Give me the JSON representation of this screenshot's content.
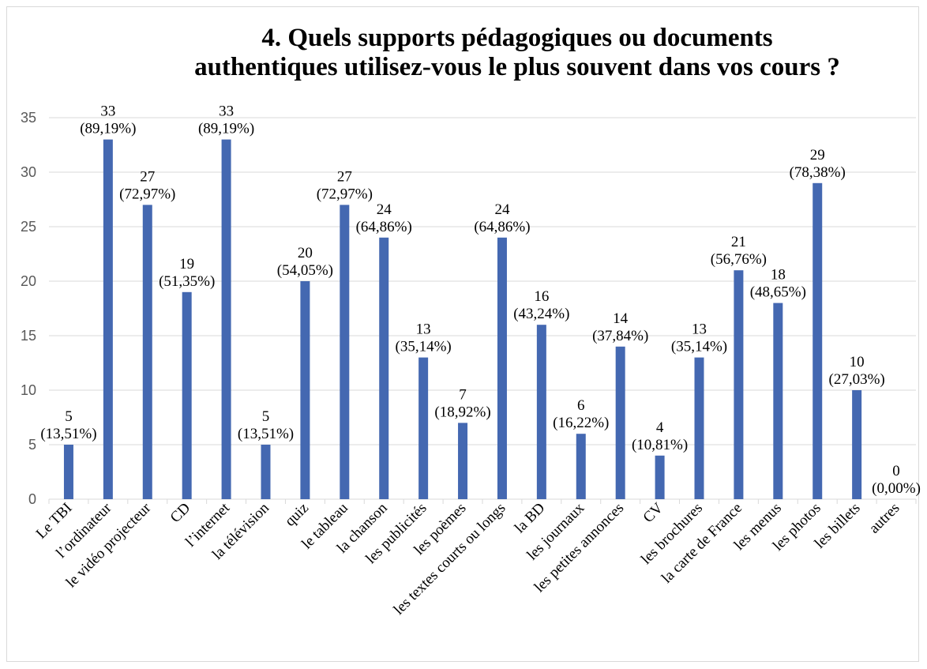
{
  "chart_data": {
    "type": "bar",
    "title_line1": "4. Quels supports pédagogiques ou documents",
    "title_line2": "authentiques utilisez-vous le plus souvent dans vos cours ?",
    "categories": [
      "Le TBI",
      "l’ordinateur",
      "le vidéo projecteur",
      "CD",
      "l’internet",
      "la télévision",
      "quiz",
      "le tableau",
      "la chanson",
      "les publicités",
      "les poèmes",
      "les textes courts ou longs",
      "la BD",
      "les journaux",
      "les petites annonces",
      "CV",
      "les brochures",
      "la carte de France",
      "les menus",
      "les photos",
      "les billets",
      "autres"
    ],
    "values": [
      5,
      33,
      27,
      19,
      33,
      5,
      20,
      27,
      24,
      13,
      7,
      24,
      16,
      6,
      14,
      4,
      13,
      21,
      18,
      29,
      10,
      0
    ],
    "percent_labels": [
      "(13,51%)",
      "(89,19%)",
      "(72,97%)",
      "(51,35%)",
      "(89,19%)",
      "(13,51%)",
      "(54,05%)",
      "(72,97%)",
      "(64,86%)",
      "(35,14%)",
      "(18,92%)",
      "(64,86%)",
      "(43,24%)",
      "(16,22%)",
      "(37,84%)",
      "(10,81%)",
      "(35,14%)",
      "(56,76%)",
      "(48,65%)",
      "(78,38%)",
      "(27,03%)",
      "(0,00%)"
    ],
    "ylim": [
      0,
      35
    ],
    "yticks": [
      0,
      5,
      10,
      15,
      20,
      25,
      30,
      35
    ],
    "grid": true,
    "legend": "none",
    "bar_color": "#4468b1",
    "grid_color": "#d9d9d9"
  }
}
